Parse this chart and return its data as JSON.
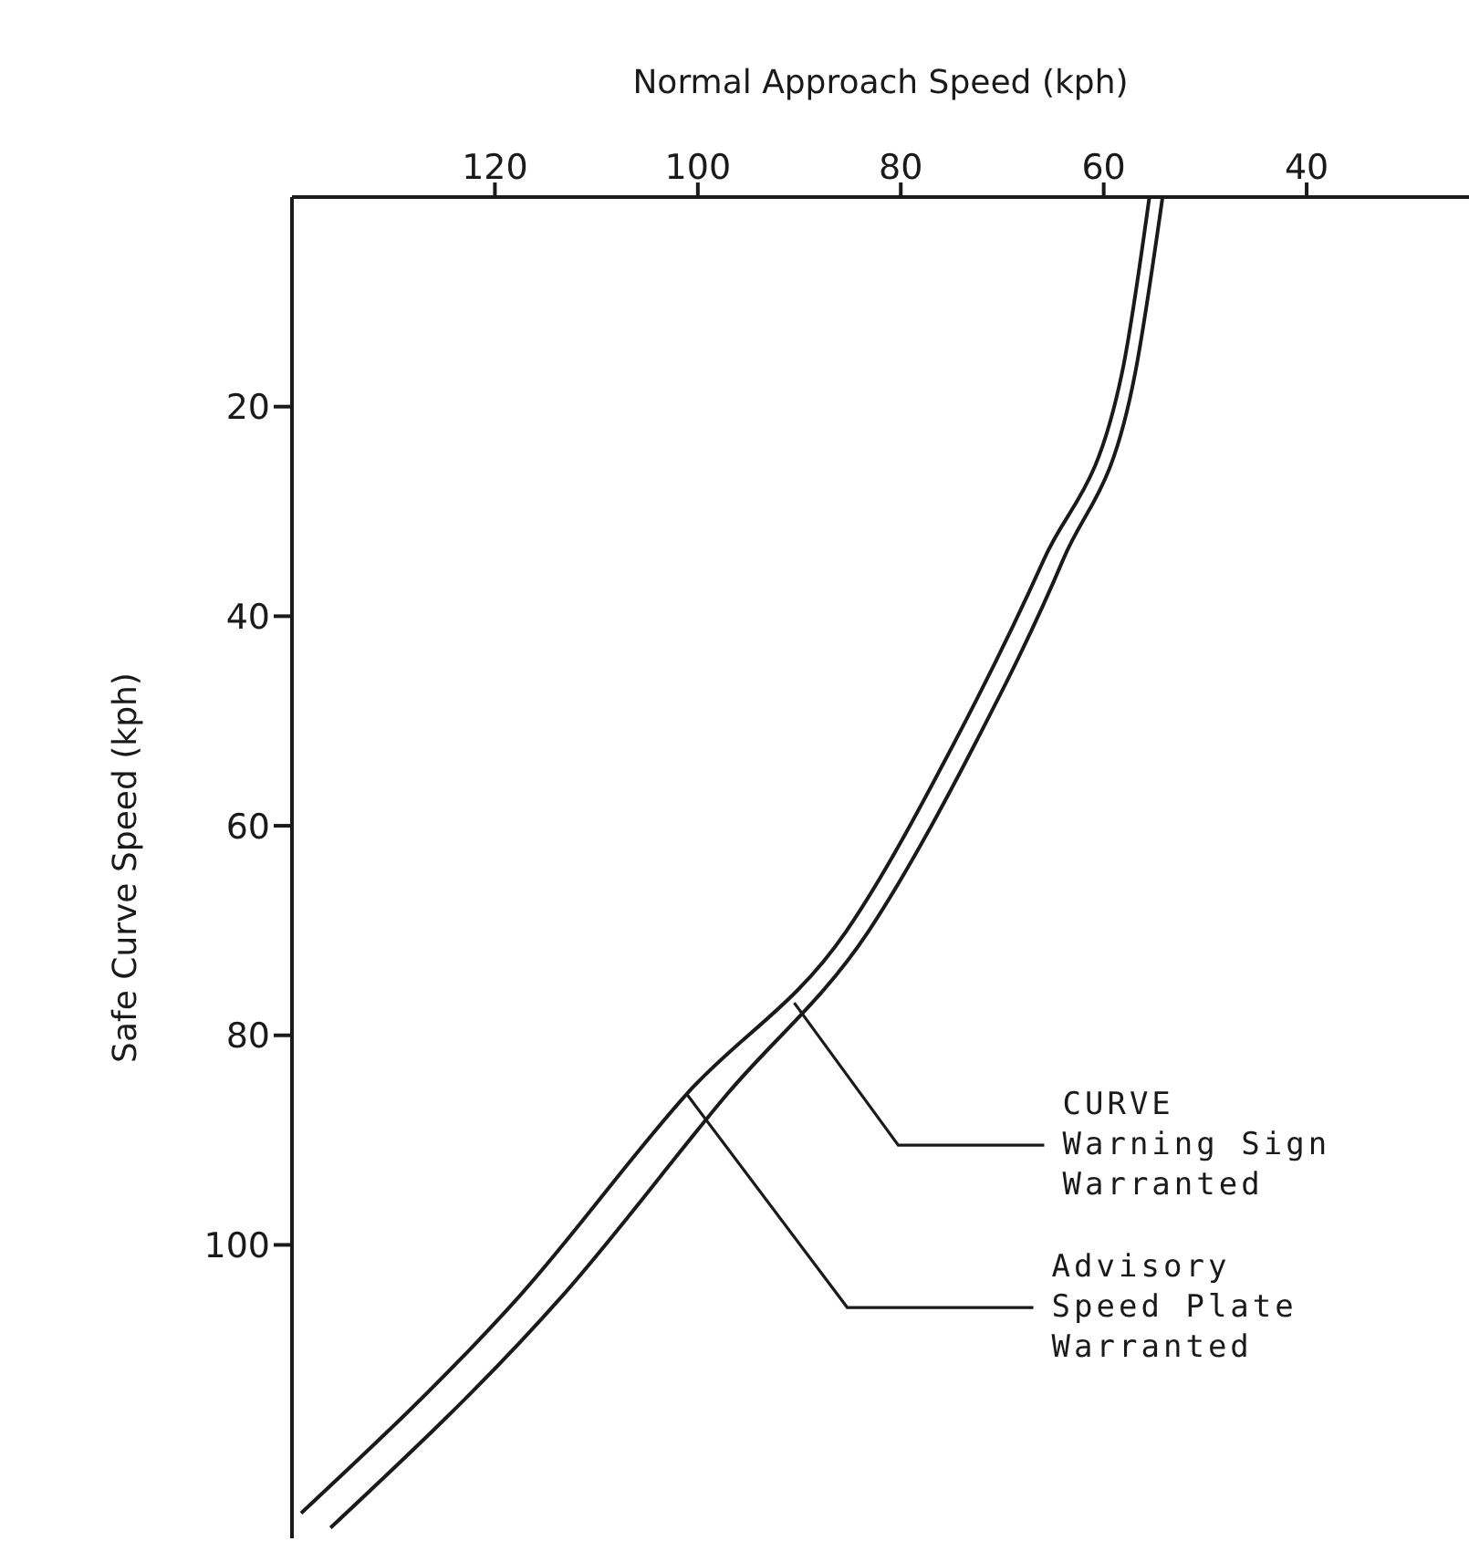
{
  "chart_data": {
    "type": "line",
    "xlabel": "Normal Approach Speed (kph)",
    "ylabel": "Safe Curve Speed (kph)",
    "xlim": [
      140,
      24
    ],
    "xticks": [
      120,
      100,
      80,
      60,
      40
    ],
    "ylim": [
      128,
      0
    ],
    "yticks": [
      20,
      40,
      60,
      80,
      100
    ],
    "series": [
      {
        "color": "#1a1a1a",
        "x": [
          55.5,
          58.2,
          65.9,
          74.9,
          85.4,
          101.1,
          117.5,
          139.1
        ],
        "values": [
          0,
          16.8,
          34.6,
          52.4,
          70.1,
          85.6,
          104.8,
          125.6
        ]
      },
      {
        "color": "#1a1a1a",
        "x": [
          54.2,
          56.9,
          64.0,
          72.8,
          83.2,
          97.1,
          113.3,
          136.2
        ],
        "values": [
          0,
          16.8,
          34.6,
          52.4,
          70.1,
          85.6,
          104.8,
          127
        ]
      }
    ],
    "annotations": [
      {
        "text": "CURVE\nWarning Sign\nWarranted",
        "x": 90.5,
        "y": 76.9
      },
      {
        "text": "Advisory\nSpeed Plate\nWarranted",
        "x": 101.1,
        "y": 85.6
      }
    ],
    "marker": "none",
    "line_style": "solid"
  }
}
